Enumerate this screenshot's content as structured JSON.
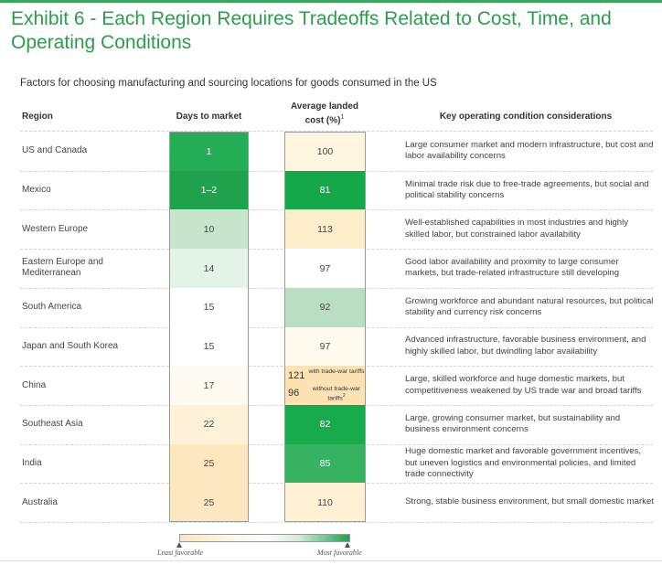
{
  "title": "Exhibit 6 - Each Region Requires Tradeoffs Related to Cost, Time, and Operating Conditions",
  "subtitle": "Factors for choosing manufacturing and sourcing locations for goods consumed in the US",
  "headers": {
    "region": "Region",
    "days": "Days to market",
    "cost_line1": "Average landed",
    "cost_line2": "cost (%)",
    "cost_sup": "1",
    "considerations": "Key operating condition considerations"
  },
  "rows": [
    {
      "region": "US and Canada",
      "days": "1",
      "days_color": "#23ad55",
      "cost": "100",
      "cost_color": "#fff6e0",
      "considerations": "Large consumer market and modern infrastructure, but cost and labor availability concerns"
    },
    {
      "region": "Mexico",
      "days": "1–2",
      "days_color": "#1fa14d",
      "cost": "81",
      "cost_color": "#15a84b",
      "considerations": "Minimal trade risk due to free-trade agreements, but social and political stability concerns"
    },
    {
      "region": "Western Europe",
      "days": "10",
      "days_color": "#c8e6ce",
      "cost": "113",
      "cost_color": "#feedca",
      "considerations": "Well-established capabilities in most industries and highly skilled labor, but constrained labor availability"
    },
    {
      "region": "Eastern Europe and Mediterranean",
      "days": "14",
      "days_color": "#e4f3e7",
      "cost": "97",
      "cost_color": "#ffffff",
      "considerations": "Good labor availability and proximity to large consumer markets, but trade-related infrastructure still developing"
    },
    {
      "region": "South America",
      "days": "15",
      "days_color": "#ffffff",
      "cost": "92",
      "cost_color": "#b9dfc2",
      "considerations": "Growing workforce and abundant natural resources, but political stability and currency risk concerns"
    },
    {
      "region": "Japan and South Korea",
      "days": "15",
      "days_color": "#ffffff",
      "cost": "97",
      "cost_color": "#fffbef",
      "considerations": "Advanced infrastructure, favorable business environment, and highly skilled labor, but dwindling labor availability"
    },
    {
      "region": "China",
      "days": "17",
      "days_color": "#fffbf0",
      "cost": "",
      "cost_color": "#fde3b3",
      "considerations": "Large, skilled workforce and huge domestic markets, but competitiveness weakened by US trade war and broad tariffs"
    },
    {
      "region": "Southeast Asia",
      "days": "22",
      "days_color": "#fff2d6",
      "cost": "82",
      "cost_color": "#17aa4c",
      "considerations": "Large, growing consumer market, but sustainability and business environment concerns"
    },
    {
      "region": "India",
      "days": "25",
      "days_color": "#fde7bf",
      "cost": "85",
      "cost_color": "#37b260",
      "considerations": "Huge domestic market and favorable government incentives, but uneven logistics and environmental policies, and limited trade connectivity"
    },
    {
      "region": "Australia",
      "days": "25",
      "days_color": "#fde7bf",
      "cost": "110",
      "cost_color": "#fff1d4",
      "considerations": "Strong, stable business environment, but small domestic market"
    }
  ],
  "china_cost": {
    "with_value": "121",
    "with_label": "with trade-war tariffs",
    "without_value": "96",
    "without_label": "without trade-war tariffs",
    "without_sup": "2"
  },
  "legend": {
    "least": "Least favorable",
    "most": "Most favorable"
  }
}
